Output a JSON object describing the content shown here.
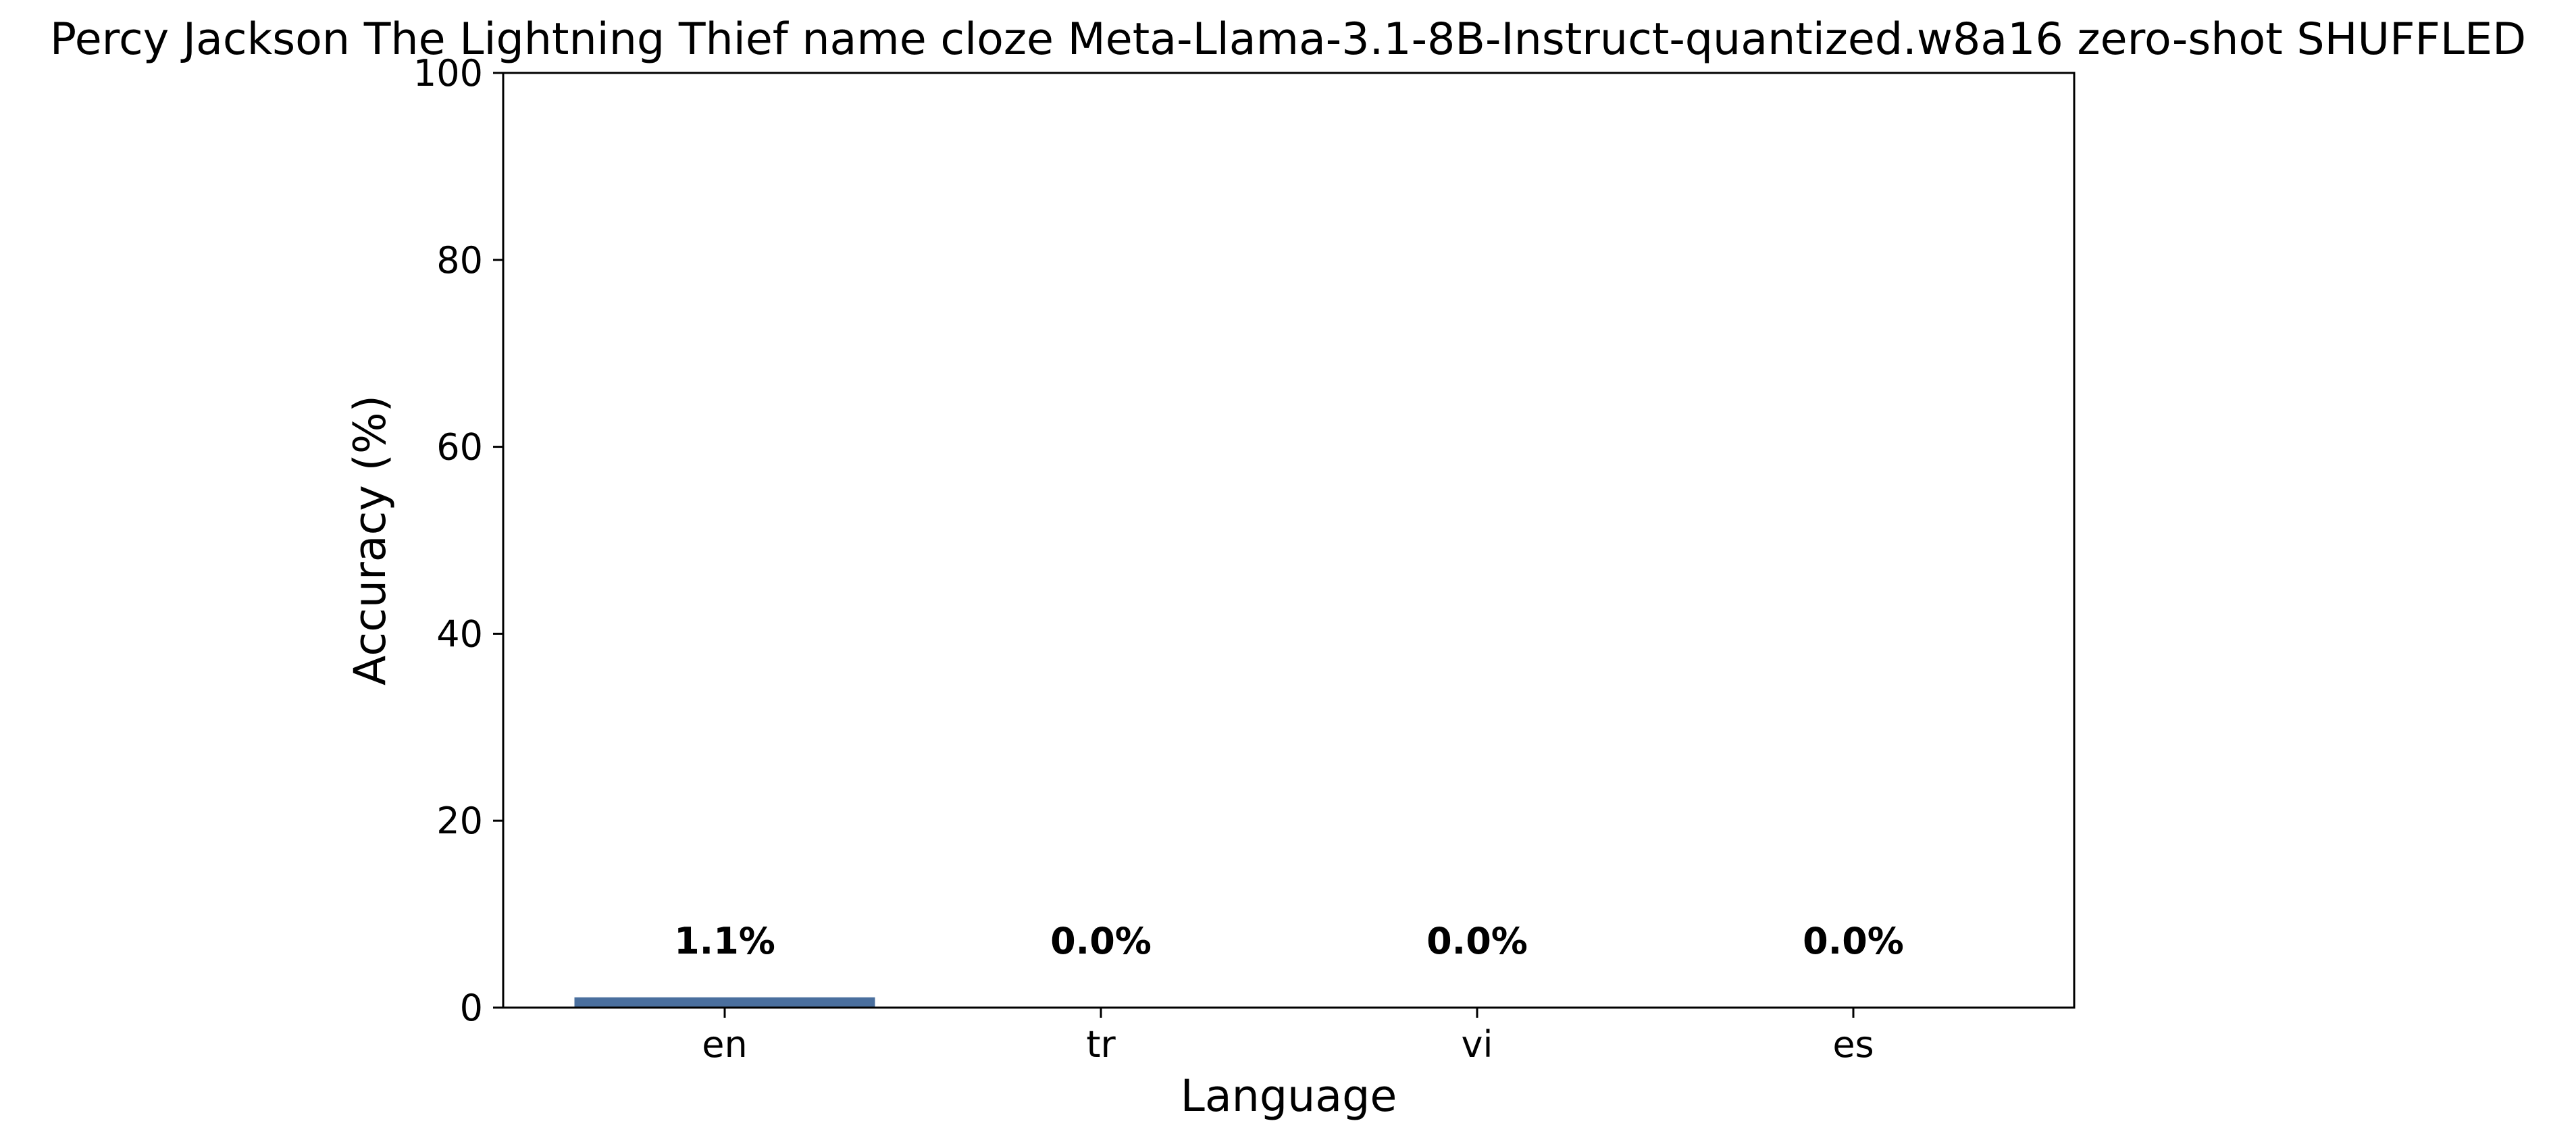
{
  "chart_data": {
    "type": "bar",
    "title": "Percy Jackson The Lightning Thief name cloze Meta-Llama-3.1-8B-Instruct-quantized.w8a16 zero-shot SHUFFLED",
    "xlabel": "Language",
    "ylabel": "Accuracy (%)",
    "categories": [
      "en",
      "tr",
      "vi",
      "es"
    ],
    "values": [
      1.1,
      0.0,
      0.0,
      0.0
    ],
    "value_labels": [
      "1.1%",
      "0.0%",
      "0.0%",
      "0.0%"
    ],
    "ylim": [
      0,
      100
    ],
    "yticks": [
      0,
      20,
      40,
      60,
      80,
      100
    ],
    "ytick_labels": [
      "0",
      "20",
      "40",
      "60",
      "80",
      "100"
    ],
    "grid": false,
    "legend": false,
    "bar_color": "#4a6f9e",
    "axes_color": "#000000"
  }
}
